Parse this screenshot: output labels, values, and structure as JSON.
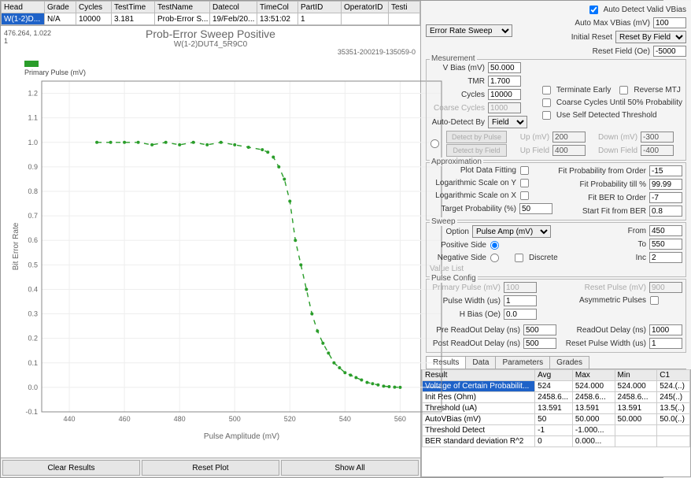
{
  "top_grid": {
    "headers": [
      "Head",
      "Grade",
      "Cycles",
      "TestTime",
      "TestName",
      "Datecol",
      "TimeCol",
      "PartID",
      "OperatorID",
      "Testi"
    ],
    "row": [
      "W(1-2)D...",
      "N/A",
      "10000",
      "3.181",
      "Prob-Error S...",
      "19/Feb/20...",
      "13:51:02",
      "1",
      "",
      ""
    ]
  },
  "chart": {
    "crumb_left": "476.264, 1.022",
    "crumb_sub": "1",
    "title": "Prob-Error Sweep Positive",
    "subtitle": "W(1-2)DUT4_5R9C0",
    "id_right": "35351-200219-135059-0",
    "legend": "Primary Pulse (mV)",
    "xlabel": "Pulse Amplitude (mV)",
    "ylabel": "Bit Error Rate",
    "type": "line",
    "line_color": "#2a9d2a",
    "grid_color": "#eeeeee",
    "axis_color": "#888888",
    "background_color": "#ffffff",
    "marker_size": 2,
    "line_width": 1.4,
    "xlim": [
      430,
      575
    ],
    "ylim": [
      -0.1,
      1.25
    ],
    "xticks": [
      440,
      460,
      480,
      500,
      520,
      540,
      560
    ],
    "yticks": [
      -0.1,
      0.0,
      0.1,
      0.2,
      0.3,
      0.4,
      0.5,
      0.6,
      0.7,
      0.8,
      0.9,
      1.0,
      1.1,
      1.2
    ],
    "x": [
      450,
      455,
      460,
      465,
      470,
      475,
      480,
      485,
      490,
      495,
      500,
      505,
      510,
      512,
      514,
      516,
      518,
      520,
      522,
      524,
      526,
      528,
      530,
      532,
      534,
      536,
      538,
      540,
      542,
      544,
      546,
      548,
      550,
      552,
      554,
      556,
      558,
      560
    ],
    "y": [
      1.0,
      1.0,
      1.0,
      1.0,
      0.99,
      1.0,
      0.99,
      1.0,
      0.99,
      1.0,
      0.99,
      0.98,
      0.97,
      0.96,
      0.94,
      0.9,
      0.85,
      0.76,
      0.6,
      0.5,
      0.4,
      0.3,
      0.23,
      0.18,
      0.14,
      0.1,
      0.08,
      0.06,
      0.05,
      0.04,
      0.03,
      0.02,
      0.015,
      0.01,
      0.005,
      0.003,
      0.001,
      0.0
    ]
  },
  "bottom_buttons": {
    "clear": "Clear Results",
    "reset": "Reset Plot",
    "showall": "Show All"
  },
  "right_top": {
    "sweep_sel": "Error Rate Sweep",
    "auto_detect_cb": true,
    "auto_detect_lbl": "Auto Detect Valid VBias",
    "auto_max_lbl": "Auto Max VBias (mV)",
    "auto_max": "100",
    "initial_reset_lbl": "Initial Reset",
    "initial_reset": "Reset By Field",
    "reset_field_lbl": "Reset Field (Oe)",
    "reset_field": "-5000"
  },
  "measurement": {
    "title": "Mesurement",
    "vbias_lbl": "V Bias (mV)",
    "vbias": "50.000",
    "tmr_lbl": "TMR",
    "tmr": "1.700",
    "cycles_lbl": "Cycles",
    "cycles": "10000",
    "term_lbl": "Terminate Early",
    "rev_lbl": "Reverse MTJ",
    "coarse_lbl": "Coarse Cycles",
    "coarse": "1000",
    "coarse50_lbl": "Coarse Cycles Until 50% Probability",
    "autodby_lbl": "Auto-Detect By",
    "autodby": "Field",
    "useself_lbl": "Use Self Detected Threshold",
    "detect_pulse": "Detect by Pulse",
    "detect_field": "Detect by Field",
    "up_lbl": "Up (mV)",
    "up": "200",
    "down_lbl": "Down (mV)",
    "down": "-300",
    "upf_lbl": "Up Field",
    "upf": "400",
    "downf_lbl": "Down Field",
    "downf": "-400"
  },
  "approx": {
    "title": "Approximation",
    "plotfit_lbl": "Plot Data Fitting",
    "logy_lbl": "Logarithmic Scale on Y",
    "logx_lbl": "Logarithmic Scale on X",
    "target_lbl": "Target Probability (%)",
    "target": "50",
    "fit_order_lbl": "Fit Probability from Order",
    "fit_order": "-15",
    "fit_till_lbl": "Fit Probability till %",
    "fit_till": "99.99",
    "ber_order_lbl": "Fit BER to Order",
    "ber_order": "-7",
    "start_ber_lbl": "Start Fit from BER",
    "start_ber": "0.8"
  },
  "sweep": {
    "title": "Sweep",
    "option_lbl": "Option",
    "option": "Pulse Amp (mV)",
    "pos_lbl": "Positive Side",
    "neg_lbl": "Negative Side",
    "disc_lbl": "Discrete",
    "from_lbl": "From",
    "from": "450",
    "to_lbl": "To",
    "to": "550",
    "inc_lbl": "Inc",
    "inc": "2",
    "valuelist_lbl": "Value List"
  },
  "pulse": {
    "title": "Pulse Config",
    "pp_lbl": "Primary Pulse (mV)",
    "pp": "100",
    "rp_lbl": "Reset Pulse (mV)",
    "rp": "900",
    "pw_lbl": "Pulse Width (us)",
    "pw": "1",
    "asym_lbl": "Asymmetric Pulses",
    "hbias_lbl": "H Bias (Oe)",
    "hbias": "0.0",
    "pre_lbl": "Pre ReadOut Delay (ns)",
    "pre": "500",
    "rod_lbl": "ReadOut Delay (ns)",
    "rod": "1000",
    "post_lbl": "Post ReadOut Delay (ns)",
    "post": "500",
    "rpw_lbl": "Reset Pulse Width (us)",
    "rpw": "1"
  },
  "results": {
    "tabs": [
      "Results",
      "Data",
      "Parameters",
      "Grades"
    ],
    "active_tab": 0,
    "cols": [
      "Result",
      "Avg",
      "Max",
      "Min",
      "C1"
    ],
    "rows": [
      [
        "Voltage of Certain Probabilit...",
        "524",
        "524.000",
        "524.000",
        "524.(..)"
      ],
      [
        "Init Res (Ohm)",
        "2458.6...",
        "2458.6...",
        "2458.6...",
        "245(..)"
      ],
      [
        "Threshold (uA)",
        "13.591",
        "13.591",
        "13.591",
        "13.5(..)"
      ],
      [
        "AutoVBias (mV)",
        "50",
        "50.000",
        "50.000",
        "50.0(..)"
      ],
      [
        "Threshold Detect",
        "-1",
        "-1.000...",
        "",
        ""
      ],
      [
        "BER standard deviation  R^2",
        "0",
        "0.000...",
        "",
        ""
      ]
    ],
    "selected": 0
  }
}
